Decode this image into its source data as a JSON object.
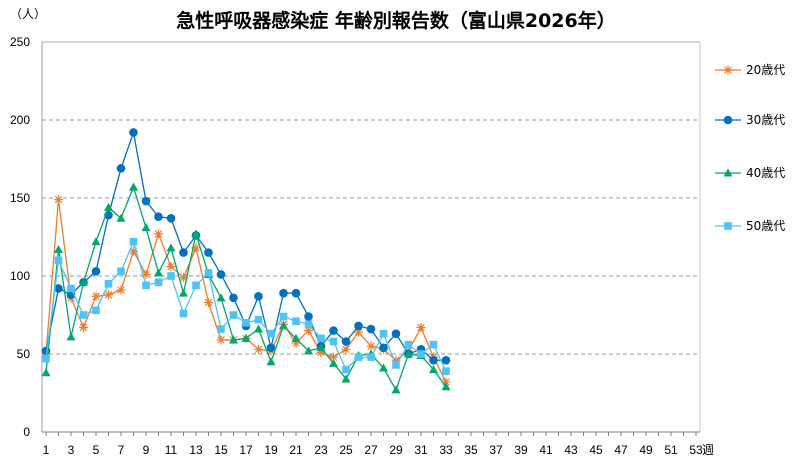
{
  "chart_data": {
    "type": "line",
    "title": "急性呼吸器感染症 年齢別報告数（富山県2026年）",
    "ylabel": "（人）",
    "xlabel": "週",
    "xlim": [
      1,
      53
    ],
    "ylim": [
      0,
      250
    ],
    "yticks": [
      0,
      50,
      100,
      150,
      200,
      250
    ],
    "xticks": [
      1,
      3,
      5,
      7,
      9,
      11,
      13,
      15,
      17,
      19,
      21,
      23,
      25,
      27,
      29,
      31,
      33,
      35,
      37,
      39,
      41,
      43,
      45,
      47,
      49,
      51,
      53
    ],
    "grid": "horizontal-dashed",
    "legend_position": "right",
    "series": [
      {
        "name": "20歳代",
        "color": "#ED7D31",
        "marker": "star",
        "x": [
          1,
          2,
          3,
          4,
          5,
          6,
          7,
          8,
          9,
          10,
          11,
          12,
          13,
          14,
          15,
          16,
          17,
          18,
          19,
          20,
          21,
          22,
          23,
          24,
          25,
          26,
          27,
          28,
          29,
          30,
          31,
          32,
          33
        ],
        "values": [
          50,
          149,
          86,
          67,
          87,
          88,
          91,
          116,
          101,
          127,
          106,
          99,
          118,
          83,
          59,
          59,
          60,
          53,
          52,
          69,
          57,
          65,
          51,
          48,
          53,
          64,
          55,
          53,
          46,
          52,
          67,
          48,
          32
        ]
      },
      {
        "name": "30歳代",
        "color": "#0070C0",
        "marker": "circle",
        "x": [
          1,
          2,
          3,
          4,
          5,
          6,
          7,
          8,
          9,
          10,
          11,
          12,
          13,
          14,
          15,
          16,
          17,
          18,
          19,
          20,
          21,
          22,
          23,
          24,
          25,
          26,
          27,
          28,
          29,
          30,
          31,
          32,
          33
        ],
        "values": [
          52,
          92,
          88,
          96,
          103,
          139,
          169,
          192,
          148,
          138,
          137,
          115,
          126,
          115,
          101,
          86,
          68,
          87,
          54,
          89,
          89,
          74,
          55,
          65,
          58,
          68,
          66,
          54,
          63,
          50,
          53,
          46,
          46
        ]
      },
      {
        "name": "40歳代",
        "color": "#00A86B",
        "marker": "triangle",
        "x": [
          1,
          2,
          3,
          4,
          5,
          6,
          7,
          8,
          9,
          10,
          11,
          12,
          13,
          14,
          15,
          16,
          17,
          18,
          19,
          20,
          21,
          22,
          23,
          24,
          25,
          26,
          27,
          28,
          29,
          30,
          31,
          32,
          33
        ],
        "values": [
          38,
          117,
          61,
          96,
          122,
          144,
          137,
          157,
          131,
          102,
          118,
          89,
          127,
          101,
          86,
          59,
          60,
          66,
          45,
          68,
          60,
          52,
          54,
          44,
          34,
          49,
          50,
          41,
          27,
          50,
          49,
          40,
          29
        ]
      },
      {
        "name": "50歳代",
        "color": "#4FC3F7",
        "marker": "square",
        "x": [
          1,
          2,
          3,
          4,
          5,
          6,
          7,
          8,
          9,
          10,
          11,
          12,
          13,
          14,
          15,
          16,
          17,
          18,
          19,
          20,
          21,
          22,
          23,
          24,
          25,
          26,
          27,
          28,
          29,
          30,
          31,
          32,
          33
        ],
        "values": [
          47,
          110,
          92,
          75,
          78,
          95,
          103,
          122,
          94,
          96,
          100,
          76,
          94,
          102,
          66,
          75,
          70,
          72,
          63,
          74,
          71,
          69,
          60,
          58,
          40,
          48,
          48,
          63,
          43,
          56,
          50,
          56,
          39
        ]
      }
    ]
  }
}
